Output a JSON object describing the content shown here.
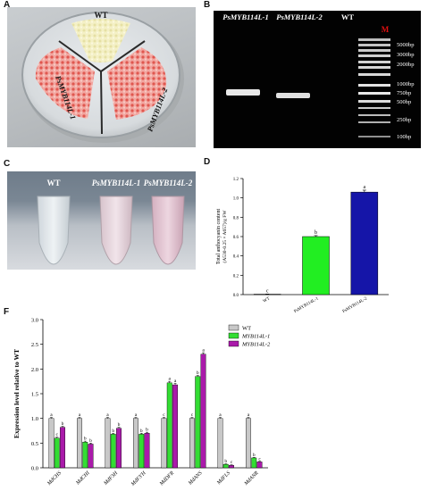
{
  "panels": {
    "a": {
      "letter": "A",
      "labels": {
        "wt": "WT",
        "line1": "PsMYB114L-1",
        "line2": "PsMYB114L-2"
      }
    },
    "b": {
      "letter": "B",
      "lanes": [
        "PsMYB114L-1",
        "PsMYB114L-2",
        "WT"
      ],
      "marker_label": "M",
      "ladder": [
        "5000bp",
        "3000bp",
        "2000bp",
        "1000bp",
        "750bp",
        "500bp",
        "250bp",
        "100bp"
      ]
    },
    "c": {
      "letter": "C",
      "labels": [
        "WT",
        "PsMYB114L-1",
        "PsMYB114L-2"
      ]
    },
    "d": {
      "letter": "D"
    },
    "f": {
      "letter": "F"
    }
  },
  "chart_data": [
    {
      "id": "D",
      "type": "bar",
      "categories": [
        "WT",
        "PsMYB114L-1",
        "PsMYB114L-2"
      ],
      "values": [
        0.004,
        0.6,
        1.06
      ],
      "errors": [
        0.002,
        0.01,
        0.02
      ],
      "letters": [
        "c",
        "b",
        "a"
      ],
      "colors": [
        "#b0b0b0",
        "#22ee22",
        "#1515a8"
      ],
      "ylabel_line1": "Total anthocyanin content",
      "ylabel_line2": "(A530-0.25 × A657)/g FW",
      "ylim": [
        0,
        1.2
      ],
      "yticks": [
        "0.0",
        "0.2",
        "0.4",
        "0.6",
        "0.8",
        "1.0",
        "1.2"
      ]
    },
    {
      "id": "F",
      "type": "bar",
      "ylabel": "Expression level relative to WT",
      "ylim": [
        0,
        3.0
      ],
      "yticks": [
        "0.0",
        "0.5",
        "1.0",
        "1.5",
        "2.0",
        "2.5",
        "3.0"
      ],
      "categories": [
        "MdCHS",
        "MdCHI",
        "MdF3H",
        "MdF3'H",
        "MdDFR",
        "MdANS",
        "MdFLS",
        "MdANR"
      ],
      "series": [
        {
          "name": "WT",
          "color": "#c8c8c8",
          "values": [
            1.0,
            1.0,
            1.0,
            1.0,
            1.0,
            1.0,
            1.0,
            1.0
          ],
          "errors": [
            0.02,
            0.02,
            0.02,
            0.02,
            0.02,
            0.02,
            0.02,
            0.02
          ],
          "letters": [
            "a",
            "a",
            "a",
            "a",
            "c",
            "c",
            "a",
            "a"
          ]
        },
        {
          "name": "MYB114L-1",
          "color": "#33dd33",
          "values": [
            0.6,
            0.52,
            0.68,
            0.68,
            1.72,
            1.85,
            0.07,
            0.2
          ],
          "errors": [
            0.02,
            0.02,
            0.02,
            0.02,
            0.03,
            0.02,
            0.01,
            0.01
          ],
          "letters": [
            "c",
            "b",
            "b",
            "b",
            "a",
            "b",
            "b",
            "b"
          ]
        },
        {
          "name": "MYB114L-2",
          "color": "#aa1aaa",
          "values": [
            0.82,
            0.48,
            0.8,
            0.7,
            1.68,
            2.3,
            0.05,
            0.12
          ],
          "errors": [
            0.02,
            0.02,
            0.02,
            0.02,
            0.03,
            0.03,
            0.01,
            0.01
          ],
          "letters": [
            "b",
            "b",
            "b",
            "b",
            "a",
            "a",
            "c",
            "c"
          ]
        }
      ]
    }
  ]
}
